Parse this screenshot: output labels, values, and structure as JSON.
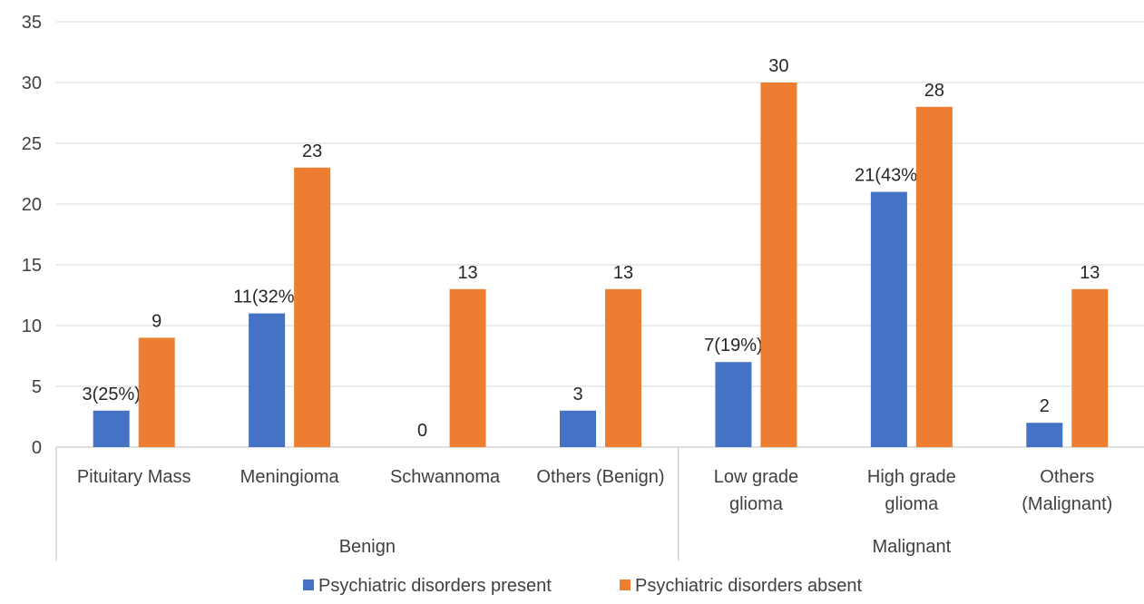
{
  "chart_data": {
    "type": "bar",
    "ylim": [
      0,
      35
    ],
    "yticks": [
      0,
      5,
      10,
      15,
      20,
      25,
      30,
      35
    ],
    "grid": true,
    "legend_position": "bottom",
    "categories": [
      {
        "label_lines": [
          "Pituitary Mass"
        ],
        "group": "Benign"
      },
      {
        "label_lines": [
          "Meningioma"
        ],
        "group": "Benign"
      },
      {
        "label_lines": [
          "Schwannoma"
        ],
        "group": "Benign"
      },
      {
        "label_lines": [
          "Others (Benign)"
        ],
        "group": "Benign"
      },
      {
        "label_lines": [
          "Low grade",
          "glioma"
        ],
        "group": "Malignant"
      },
      {
        "label_lines": [
          "High grade",
          "glioma"
        ],
        "group": "Malignant"
      },
      {
        "label_lines": [
          "Others",
          "(Malignant)"
        ],
        "group": "Malignant"
      }
    ],
    "groups": [
      {
        "label": "Benign",
        "count": 4
      },
      {
        "label": "Malignant",
        "count": 3
      }
    ],
    "series": [
      {
        "name": "Psychiatric disorders present",
        "color": "#4472C4",
        "values": [
          3,
          11,
          0,
          3,
          7,
          21,
          2
        ],
        "data_labels": [
          "3(25%)",
          "11(32%)",
          "0",
          "3",
          "7(19%)",
          "21(43%)",
          "2"
        ]
      },
      {
        "name": "Psychiatric disorders absent",
        "color": "#ED7D31",
        "values": [
          9,
          23,
          13,
          13,
          30,
          28,
          13
        ],
        "data_labels": [
          "9",
          "23",
          "13",
          "13",
          "30",
          "28",
          "13"
        ]
      }
    ]
  }
}
